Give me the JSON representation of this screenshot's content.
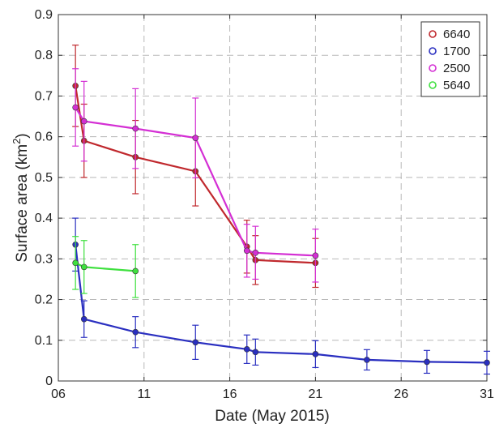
{
  "chart_data": {
    "type": "line",
    "xlabel": "Date (May 2015)",
    "ylabel": "Surface area (km",
    "ylabel_sup": "2",
    "ylabel_end": ")",
    "xlim": [
      6,
      31
    ],
    "ylim": [
      0,
      0.9
    ],
    "xticks": [
      6,
      11,
      16,
      21,
      26,
      31
    ],
    "xtick_labels": [
      "06",
      "11",
      "16",
      "21",
      "26",
      "31"
    ],
    "yticks": [
      0,
      0.1,
      0.2,
      0.3,
      0.4,
      0.5,
      0.6,
      0.7,
      0.8,
      0.9
    ],
    "ytick_labels": [
      "0",
      "0.1",
      "0.2",
      "0.3",
      "0.4",
      "0.5",
      "0.6",
      "0.7",
      "0.8",
      "0.9"
    ],
    "grid": true,
    "grid_style": "dashed",
    "legend_position": "top-right",
    "series": [
      {
        "name": "6640",
        "color": "#c0282d",
        "x": [
          7.0,
          7.5,
          10.5,
          14.0,
          17.0,
          17.5,
          21.0
        ],
        "y": [
          0.725,
          0.59,
          0.55,
          0.515,
          0.33,
          0.297,
          0.29
        ],
        "err": [
          0.1,
          0.09,
          0.09,
          0.085,
          0.065,
          0.06,
          0.06
        ]
      },
      {
        "name": "1700",
        "color": "#2a2fc0",
        "x": [
          7.0,
          7.5,
          10.5,
          14.0,
          17.0,
          17.5,
          21.0,
          24.0,
          27.5,
          31.0
        ],
        "y": [
          0.335,
          0.152,
          0.12,
          0.095,
          0.078,
          0.071,
          0.066,
          0.052,
          0.047,
          0.045
        ],
        "err": [
          0.065,
          0.045,
          0.038,
          0.042,
          0.035,
          0.032,
          0.033,
          0.025,
          0.028,
          0.028
        ]
      },
      {
        "name": "2500",
        "color": "#d42fd4",
        "x": [
          7.0,
          7.5,
          10.5,
          14.0,
          17.0,
          17.5,
          21.0
        ],
        "y": [
          0.672,
          0.638,
          0.62,
          0.597,
          0.32,
          0.315,
          0.308
        ],
        "err": [
          0.095,
          0.098,
          0.098,
          0.098,
          0.065,
          0.065,
          0.065
        ]
      },
      {
        "name": "5640",
        "color": "#3ee03e",
        "x": [
          7.0,
          7.5,
          10.5
        ],
        "y": [
          0.29,
          0.28,
          0.27
        ],
        "err": [
          0.065,
          0.065,
          0.065
        ]
      }
    ]
  }
}
